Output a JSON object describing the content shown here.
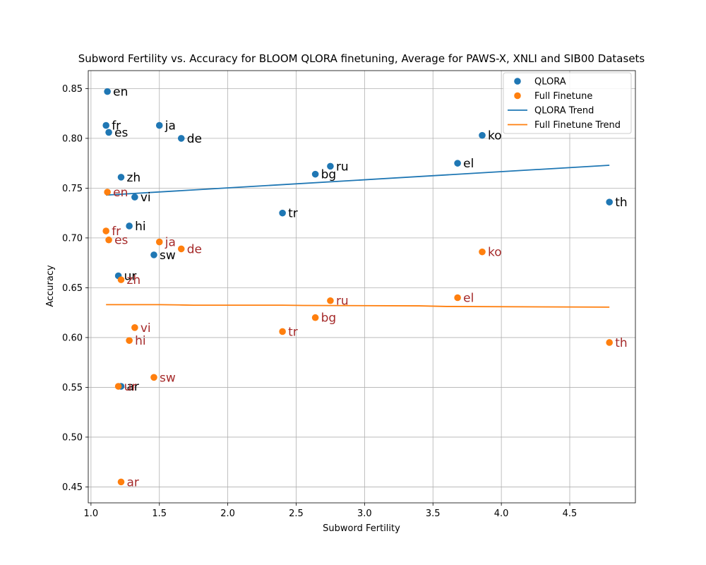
{
  "chart_data": {
    "type": "scatter",
    "title": "Subword Fertility vs. Accuracy for BLOOM QLORA finetuning, Average for PAWS-X, XNLI and SIB00 Datasets",
    "xlabel": "Subword Fertility",
    "ylabel": "Accuracy",
    "xlim": [
      0.98,
      4.98
    ],
    "ylim": [
      0.434,
      0.868
    ],
    "xticks": [
      "1.0",
      "1.5",
      "2.0",
      "2.5",
      "3.0",
      "3.5",
      "4.0",
      "4.5"
    ],
    "yticks": [
      "0.45",
      "0.50",
      "0.55",
      "0.60",
      "0.65",
      "0.70",
      "0.75",
      "0.80",
      "0.85"
    ],
    "grid": true,
    "legend_position": "top-right",
    "series": [
      {
        "name": "QLORA",
        "kind": "scatter",
        "color": "#1f77b4",
        "label_color": "#000000",
        "points": [
          {
            "label": "en",
            "x": 1.12,
            "y": 0.847
          },
          {
            "label": "fr",
            "x": 1.11,
            "y": 0.813
          },
          {
            "label": "es",
            "x": 1.13,
            "y": 0.806
          },
          {
            "label": "ja",
            "x": 1.5,
            "y": 0.813
          },
          {
            "label": "de",
            "x": 1.66,
            "y": 0.8
          },
          {
            "label": "zh",
            "x": 1.22,
            "y": 0.761
          },
          {
            "label": "vi",
            "x": 1.32,
            "y": 0.741
          },
          {
            "label": "hi",
            "x": 1.28,
            "y": 0.712
          },
          {
            "label": "sw",
            "x": 1.46,
            "y": 0.683
          },
          {
            "label": "ur",
            "x": 1.2,
            "y": 0.662
          },
          {
            "label": "ar",
            "x": 1.22,
            "y": 0.551
          },
          {
            "label": "tr",
            "x": 2.4,
            "y": 0.725
          },
          {
            "label": "bg",
            "x": 2.64,
            "y": 0.764
          },
          {
            "label": "ru",
            "x": 2.75,
            "y": 0.772
          },
          {
            "label": "el",
            "x": 3.68,
            "y": 0.775
          },
          {
            "label": "ko",
            "x": 3.86,
            "y": 0.803
          },
          {
            "label": "th",
            "x": 4.79,
            "y": 0.736
          }
        ]
      },
      {
        "name": "Full Finetune",
        "kind": "scatter",
        "color": "#ff7f0e",
        "label_color": "#a52a2a",
        "points": [
          {
            "label": "en",
            "x": 1.12,
            "y": 0.746
          },
          {
            "label": "fr",
            "x": 1.11,
            "y": 0.707
          },
          {
            "label": "es",
            "x": 1.13,
            "y": 0.698
          },
          {
            "label": "ja",
            "x": 1.5,
            "y": 0.696
          },
          {
            "label": "de",
            "x": 1.66,
            "y": 0.689
          },
          {
            "label": "zh",
            "x": 1.22,
            "y": 0.658
          },
          {
            "label": "vi",
            "x": 1.32,
            "y": 0.61
          },
          {
            "label": "hi",
            "x": 1.28,
            "y": 0.597
          },
          {
            "label": "sw",
            "x": 1.46,
            "y": 0.56
          },
          {
            "label": "ur",
            "x": 1.2,
            "y": 0.551
          },
          {
            "label": "ar",
            "x": 1.22,
            "y": 0.455
          },
          {
            "label": "tr",
            "x": 2.4,
            "y": 0.606
          },
          {
            "label": "bg",
            "x": 2.64,
            "y": 0.62
          },
          {
            "label": "ru",
            "x": 2.75,
            "y": 0.637
          },
          {
            "label": "el",
            "x": 3.68,
            "y": 0.64
          },
          {
            "label": "ko",
            "x": 3.86,
            "y": 0.686
          },
          {
            "label": "th",
            "x": 4.79,
            "y": 0.595
          }
        ]
      },
      {
        "name": "QLORA Trend",
        "kind": "line",
        "color": "#1f77b4",
        "x": [
          1.11,
          4.79
        ],
        "y": [
          0.743,
          0.773
        ]
      },
      {
        "name": "Full Finetune Trend",
        "kind": "line",
        "color": "#ff7f0e",
        "x": [
          1.11,
          1.5,
          1.66,
          1.75,
          2.4,
          2.55,
          3.4,
          3.6,
          4.79
        ],
        "y": [
          0.633,
          0.633,
          0.6327,
          0.6325,
          0.6325,
          0.6322,
          0.6318,
          0.6312,
          0.6305
        ]
      }
    ]
  }
}
